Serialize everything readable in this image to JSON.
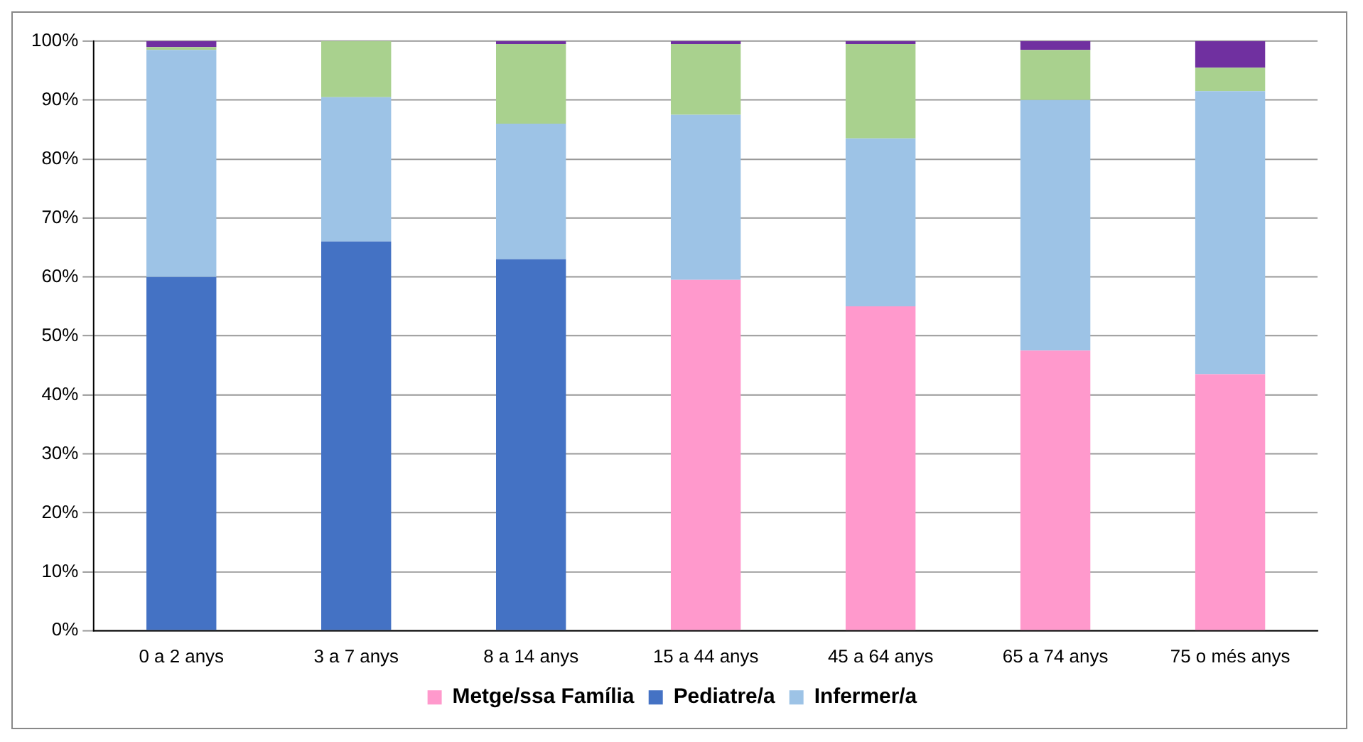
{
  "chart_data": {
    "type": "bar",
    "stacked": true,
    "categories": [
      "0 a 2 anys",
      "3 a 7 anys",
      "8 a 14 anys",
      "15 a 44 anys",
      "45 a 64 anys",
      "65 a 74 anys",
      "75 o més anys"
    ],
    "series": [
      {
        "name": "Metge/ssa Família",
        "color": "#ff99cc",
        "values": [
          0,
          0,
          0,
          59.5,
          55,
          47.5,
          43.5
        ]
      },
      {
        "name": "Pediatre/a",
        "color": "#4472c4",
        "values": [
          60,
          66,
          63,
          0,
          0,
          0,
          0
        ]
      },
      {
        "name": "Infermer/a",
        "color": "#9dc3e6",
        "values": [
          38.5,
          24.5,
          23,
          28,
          28.5,
          42.5,
          48
        ]
      },
      {
        "color": "#a9d18e",
        "values": [
          0.5,
          9.5,
          13.5,
          12,
          16,
          8.5,
          4
        ]
      },
      {
        "color": "#7030a0",
        "values": [
          1,
          0,
          0.5,
          0.5,
          0.5,
          1.5,
          4.5
        ]
      }
    ],
    "ylim": [
      0,
      100
    ],
    "yticks": [
      {
        "value": 0,
        "label": "0%"
      },
      {
        "value": 10,
        "label": "10%"
      },
      {
        "value": 20,
        "label": "20%"
      },
      {
        "value": 30,
        "label": "30%"
      },
      {
        "value": 40,
        "label": "40%"
      },
      {
        "value": 50,
        "label": "50%"
      },
      {
        "value": 60,
        "label": "60%"
      },
      {
        "value": 70,
        "label": "70%"
      },
      {
        "value": 80,
        "label": "80%"
      },
      {
        "value": 90,
        "label": "90%"
      },
      {
        "value": 100,
        "label": "100%"
      }
    ],
    "grid": "y",
    "legend": "bottom"
  }
}
